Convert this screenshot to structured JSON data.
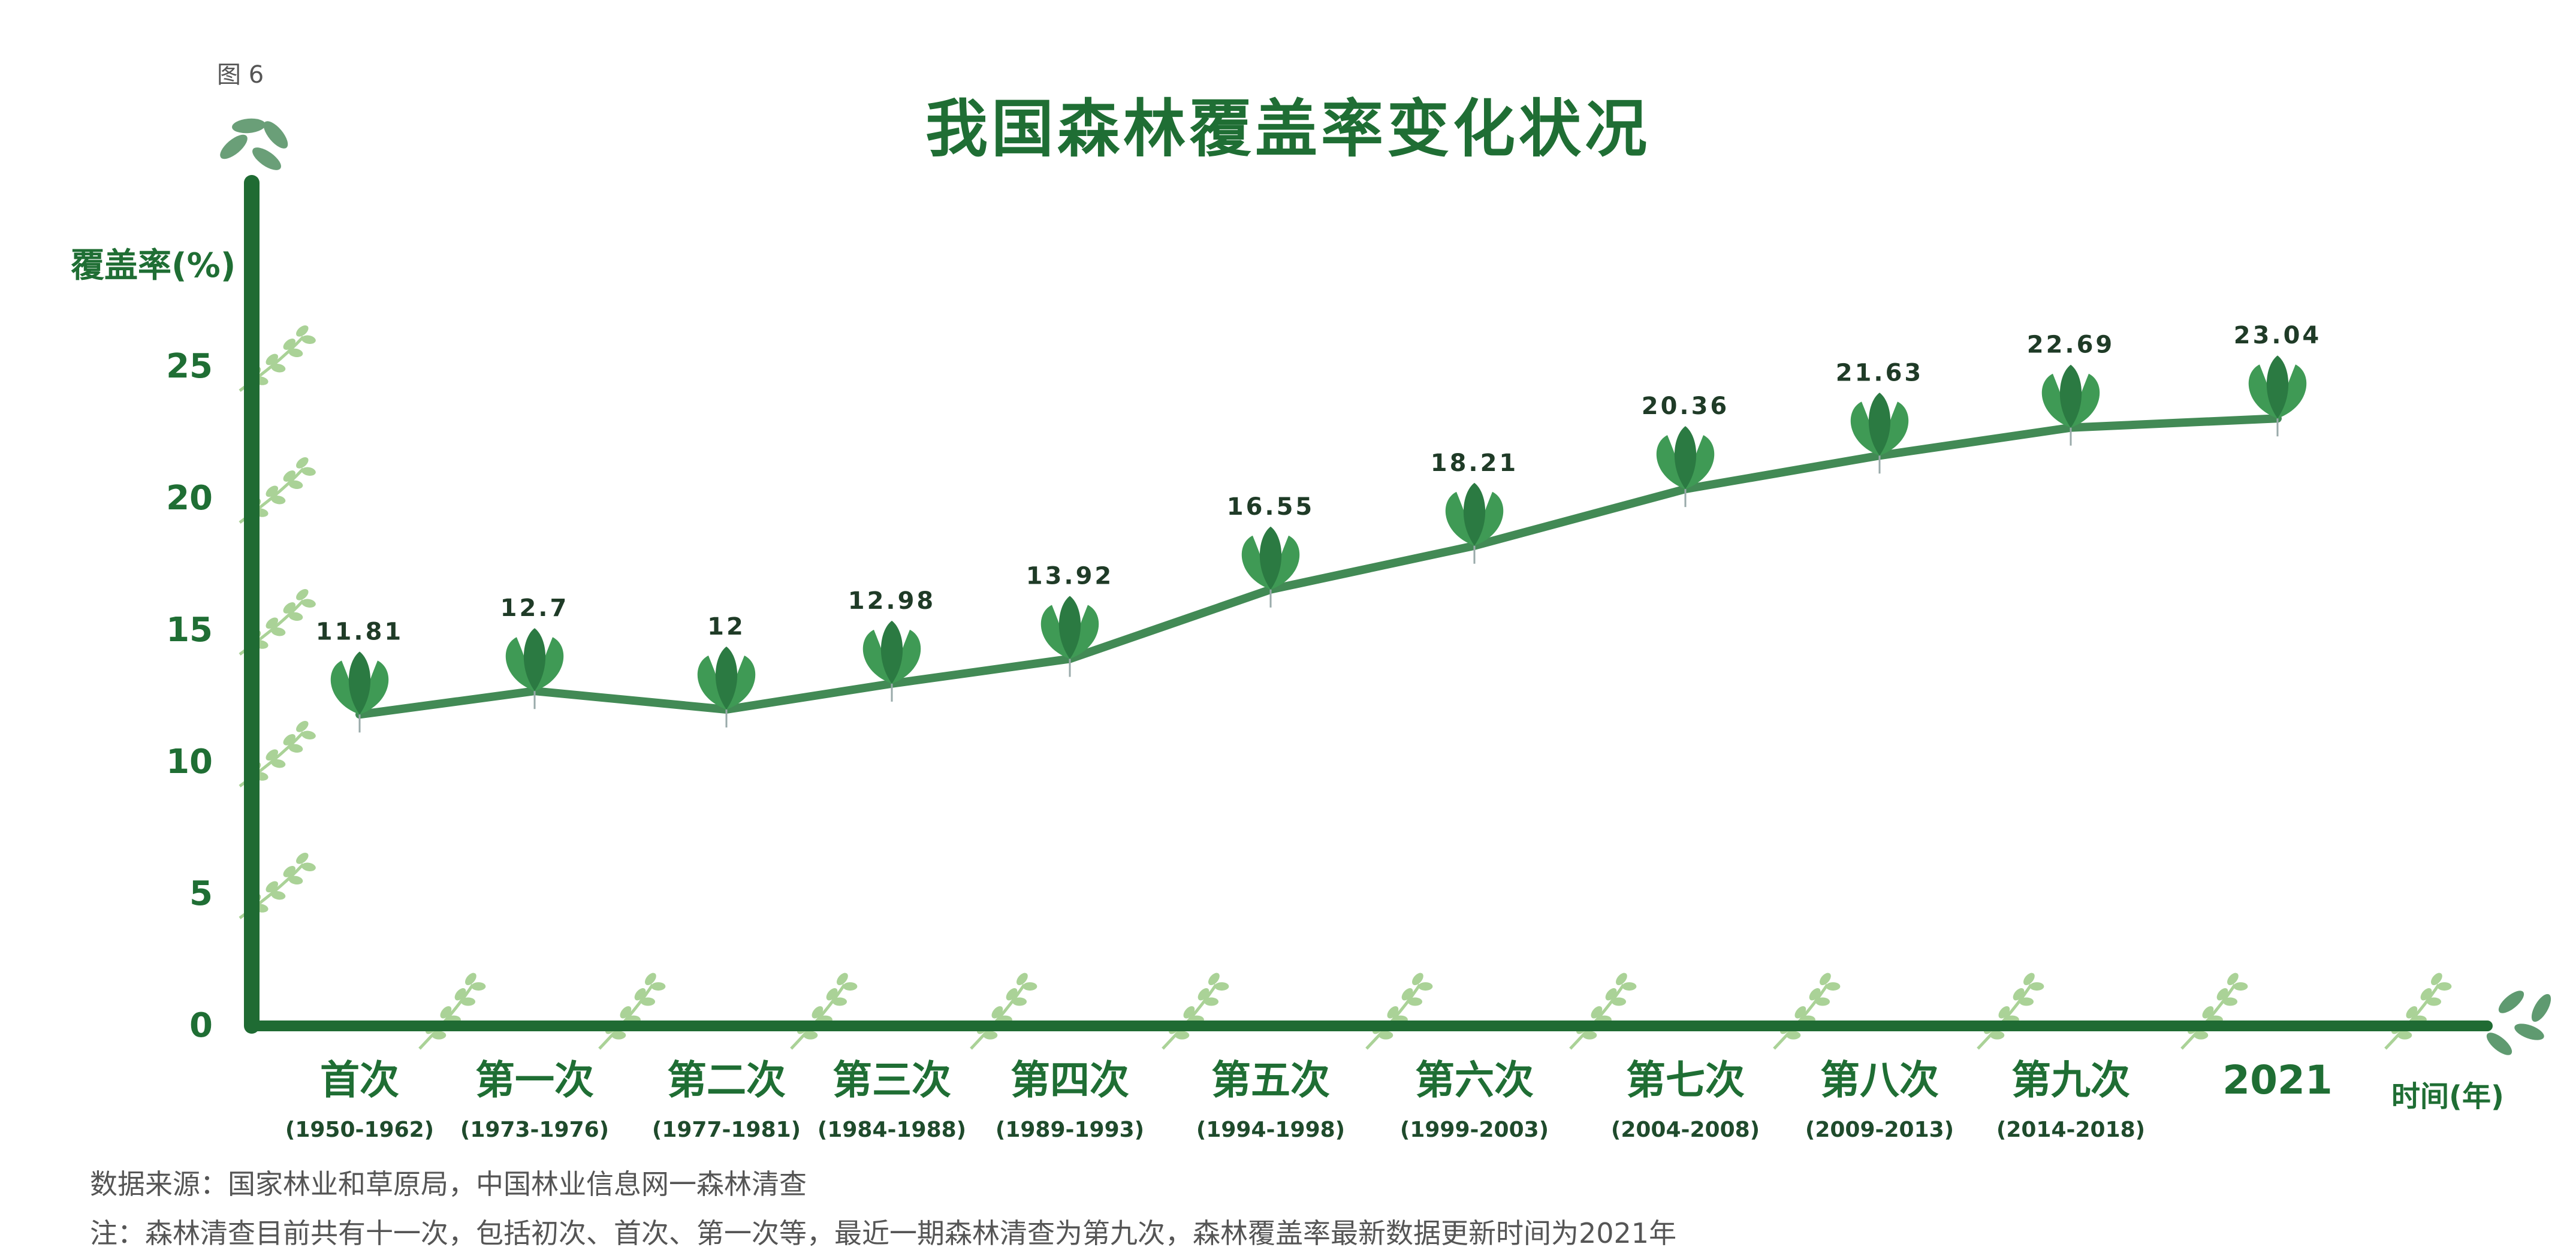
{
  "figure_label": "图 6",
  "chart_data": {
    "type": "line",
    "title": "我国森林覆盖率变化状况",
    "ylabel": "覆盖率(%)",
    "xlabel": "时间(年)",
    "ylim": [
      0,
      27
    ],
    "yticks": [
      0,
      5,
      10,
      15,
      20,
      25
    ],
    "categories": [
      "首次",
      "第一次",
      "第二次",
      "第三次",
      "第四次",
      "第五次",
      "第六次",
      "第七次",
      "第八次",
      "第九次",
      "2021"
    ],
    "periods": [
      "(1950-1962)",
      "(1973-1976)",
      "(1977-1981)",
      "(1984-1988)",
      "(1989-1993)",
      "(1994-1998)",
      "(1999-2003)",
      "(2004-2008)",
      "(2009-2013)",
      "(2014-2018)",
      ""
    ],
    "values": [
      11.81,
      12.7,
      12,
      12.98,
      13.92,
      16.55,
      18.21,
      20.36,
      21.63,
      22.69,
      23.04
    ],
    "value_labels": [
      "11.81",
      "12.7",
      "12",
      "12.98",
      "13.92",
      "16.55",
      "18.21",
      "20.36",
      "21.63",
      "22.69",
      "23.04"
    ],
    "grid": false,
    "legend": "none"
  },
  "footer": {
    "source": "数据来源：国家林业和草原局，中国林业信息网一森林清查",
    "note": "注：森林清查目前共有十一次，包括初次、首次、第一次等，最近一期森林清查为第九次，森林覆盖率最新数据更新时间为2021年"
  },
  "colors": {
    "axis": "#1f6b33",
    "line": "#2e7d43",
    "leaf": "#3f9a55",
    "leaf_dark": "#2b7a42",
    "sprig": "#9ccb86",
    "text": "#1f6e34"
  }
}
